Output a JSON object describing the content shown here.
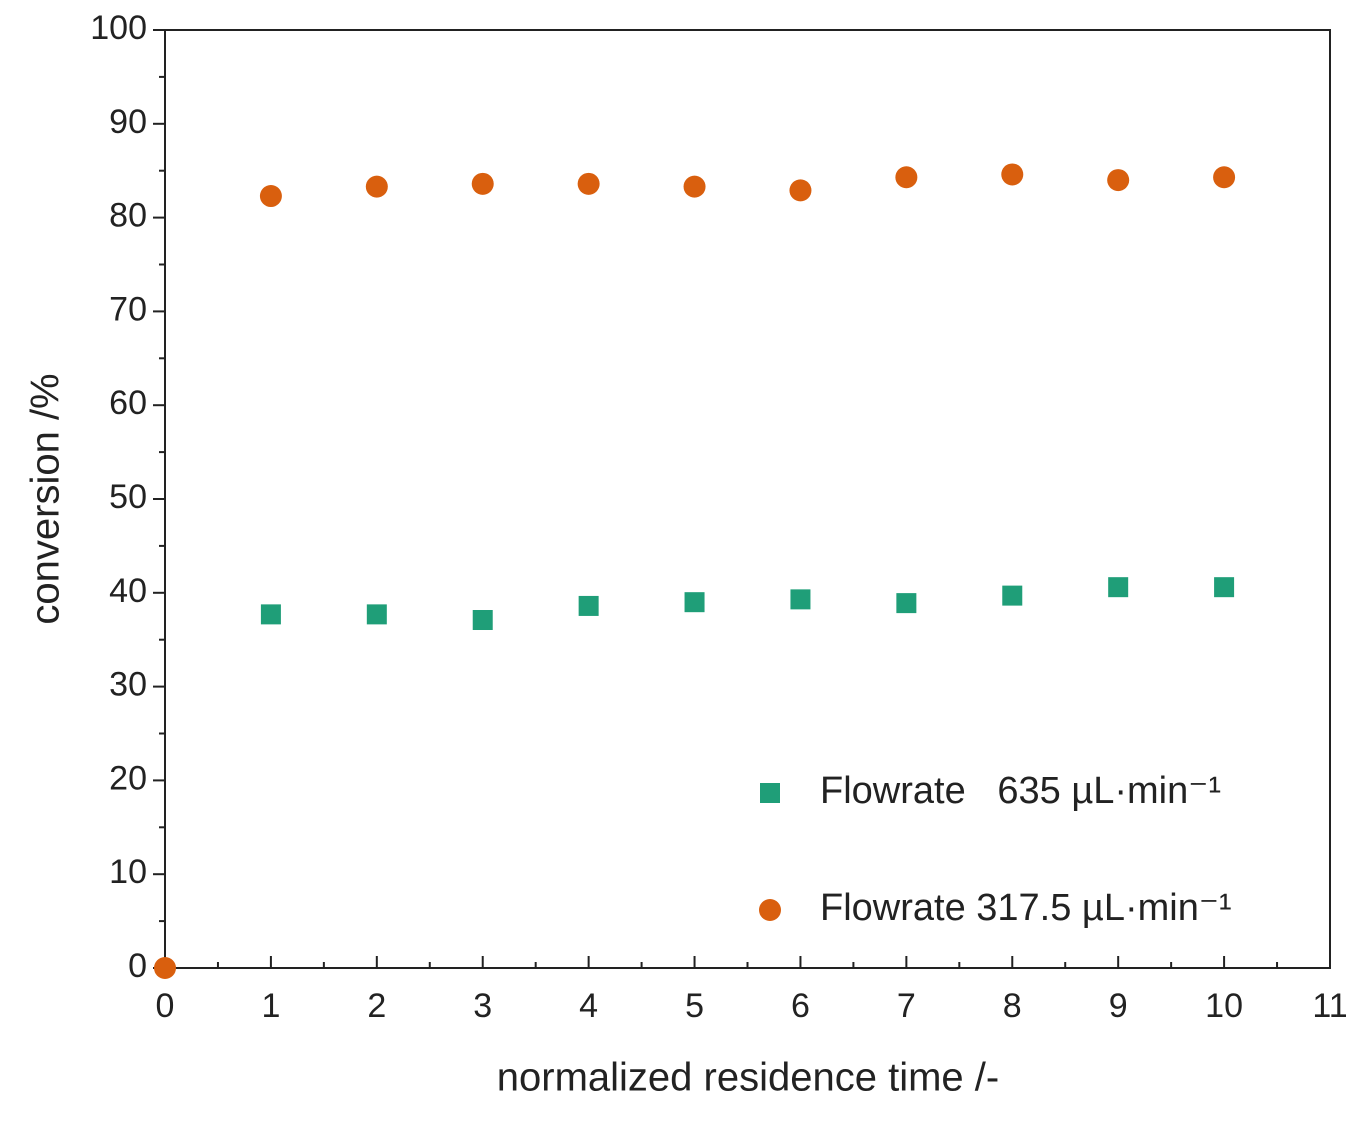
{
  "chart_data": {
    "type": "scatter",
    "x_label": "normalized residence time /-",
    "y_label": "conversion /%",
    "xlim": [
      0,
      11
    ],
    "ylim": [
      0,
      100
    ],
    "xticks": [
      0,
      1,
      2,
      3,
      4,
      5,
      6,
      7,
      8,
      9,
      10,
      11
    ],
    "yticks": [
      0,
      10,
      20,
      30,
      40,
      50,
      60,
      70,
      80,
      90,
      100
    ],
    "xminorticks": [
      0.5,
      1.5,
      2.5,
      3.5,
      4.5,
      5.5,
      6.5,
      7.5,
      8.5,
      9.5,
      10.5
    ],
    "yminorticks": [
      5,
      15,
      25,
      35,
      45,
      55,
      65,
      75,
      85,
      95
    ],
    "legend": "lower right",
    "series": [
      {
        "name": "Flowrate   635 µL·min⁻¹",
        "color": "#1f9e78",
        "marker": "square",
        "x": [
          1,
          2,
          3,
          4,
          5,
          6,
          7,
          8,
          9,
          10
        ],
        "values": [
          37.7,
          37.7,
          37.1,
          38.6,
          39.0,
          39.3,
          38.9,
          39.7,
          40.6,
          40.6
        ]
      },
      {
        "name": "Flowrate 317.5 µL·min⁻¹",
        "color": "#d95f0e",
        "marker": "circle",
        "x": [
          0,
          1,
          2,
          3,
          4,
          5,
          6,
          7,
          8,
          9,
          10
        ],
        "values": [
          0,
          82.3,
          83.3,
          83.6,
          83.6,
          83.3,
          82.9,
          84.3,
          84.6,
          84.0,
          84.3
        ]
      }
    ]
  }
}
